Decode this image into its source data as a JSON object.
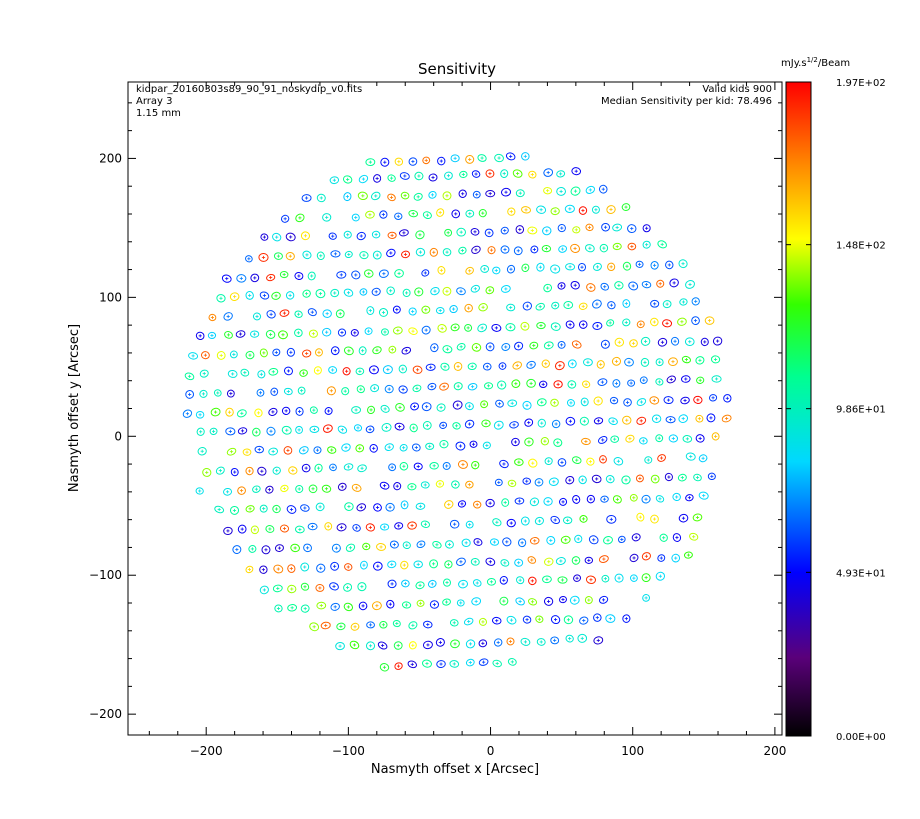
{
  "chart_data": {
    "type": "scatter",
    "title": "Sensitivity",
    "xlabel": "Nasmyth offset x [Arcsec]",
    "ylabel": "Nasmyth offset y [Arcsec]",
    "xlim": [
      -255,
      205
    ],
    "ylim": [
      -215,
      255
    ],
    "xticks": [
      -200,
      -100,
      0,
      100,
      200
    ],
    "yticks": [
      -200,
      -100,
      0,
      100,
      200
    ],
    "xtick_labels": [
      "−200",
      "−100",
      "0",
      "100",
      "200"
    ],
    "ytick_labels": [
      "−200",
      "−100",
      "0",
      "100",
      "200"
    ],
    "annotations_left": [
      "kidpar_20160303s89_90_91_noskydip_v0.fits",
      "Array 3",
      "1.15 mm"
    ],
    "annotations_right": [
      "Valid kids 900",
      "Median Sensitivity per kid: 78.496"
    ],
    "colorbar": {
      "unit_main": "mJy.s",
      "unit_sup": "1/2",
      "unit_rest": "/Beam",
      "min": 0,
      "max": 197,
      "tick_values": [
        0,
        49.3,
        98.6,
        148,
        197
      ],
      "tick_labels": [
        "0.00E+00",
        "4.93E+01",
        "9.86E+01",
        "1.48E+02",
        "1.97E+02"
      ]
    },
    "field_of_view": {
      "center": [
        -22,
        18
      ],
      "radius": 192
    },
    "rows": [
      {
        "y": 210,
        "x0": -10,
        "x1": 75
      },
      {
        "y": 197,
        "x0": -105,
        "x1": 80
      },
      {
        "y": 184,
        "x0": -140,
        "x1": 100
      },
      {
        "y": 170,
        "x0": -160,
        "x1": 115
      },
      {
        "y": 156,
        "x0": -175,
        "x1": 125
      },
      {
        "y": 142,
        "x0": -180,
        "x1": 135
      },
      {
        "y": 128,
        "x0": -190,
        "x1": 140
      },
      {
        "y": 114,
        "x0": -195,
        "x1": 145
      },
      {
        "y": 100,
        "x0": -200,
        "x1": 150
      },
      {
        "y": 86,
        "x0": -205,
        "x1": 155
      },
      {
        "y": 72,
        "x0": -205,
        "x1": 160
      },
      {
        "y": 58,
        "x0": -210,
        "x1": 162
      },
      {
        "y": 44,
        "x0": -212,
        "x1": 165
      },
      {
        "y": 30,
        "x0": -212,
        "x1": 165
      },
      {
        "y": 16,
        "x0": -214,
        "x1": 168
      },
      {
        "y": 2,
        "x0": -214,
        "x1": 168
      },
      {
        "y": -12,
        "x0": -212,
        "x1": 167
      },
      {
        "y": -26,
        "x0": -210,
        "x1": 165
      },
      {
        "y": -40,
        "x0": -205,
        "x1": 160
      },
      {
        "y": -54,
        "x0": -200,
        "x1": 158
      },
      {
        "y": -68,
        "x0": -195,
        "x1": 155
      },
      {
        "y": -82,
        "x0": -188,
        "x1": 148
      },
      {
        "y": -96,
        "x0": -180,
        "x1": 140
      },
      {
        "y": -110,
        "x0": -170,
        "x1": 130
      },
      {
        "y": -124,
        "x0": -160,
        "x1": 118
      },
      {
        "y": -138,
        "x0": -145,
        "x1": 100
      },
      {
        "y": -152,
        "x0": -125,
        "x1": 80
      },
      {
        "y": -166,
        "x0": -95,
        "x1": 20
      }
    ],
    "row_spacing_x": 10,
    "row_slope": 0.25
  }
}
